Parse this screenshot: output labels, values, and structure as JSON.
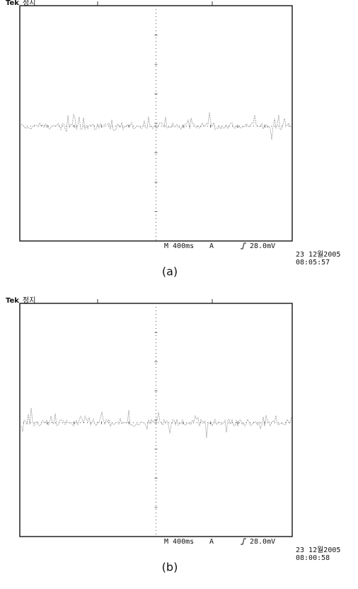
{
  "panels": [
    {
      "brand": "Tek",
      "status": "정지",
      "timebase": "M 400ms",
      "trigger_source": "A",
      "trigger_level": "28.0mV",
      "date": "23 12월2005",
      "time": "08:05:57",
      "caption": "(a)"
    },
    {
      "brand": "Tek",
      "status": "정지",
      "timebase": "M 400ms",
      "trigger_source": "A",
      "trigger_level": "28.0mV",
      "date": "23 12월2005",
      "time": "08:00:58",
      "caption": "(b)"
    }
  ]
}
